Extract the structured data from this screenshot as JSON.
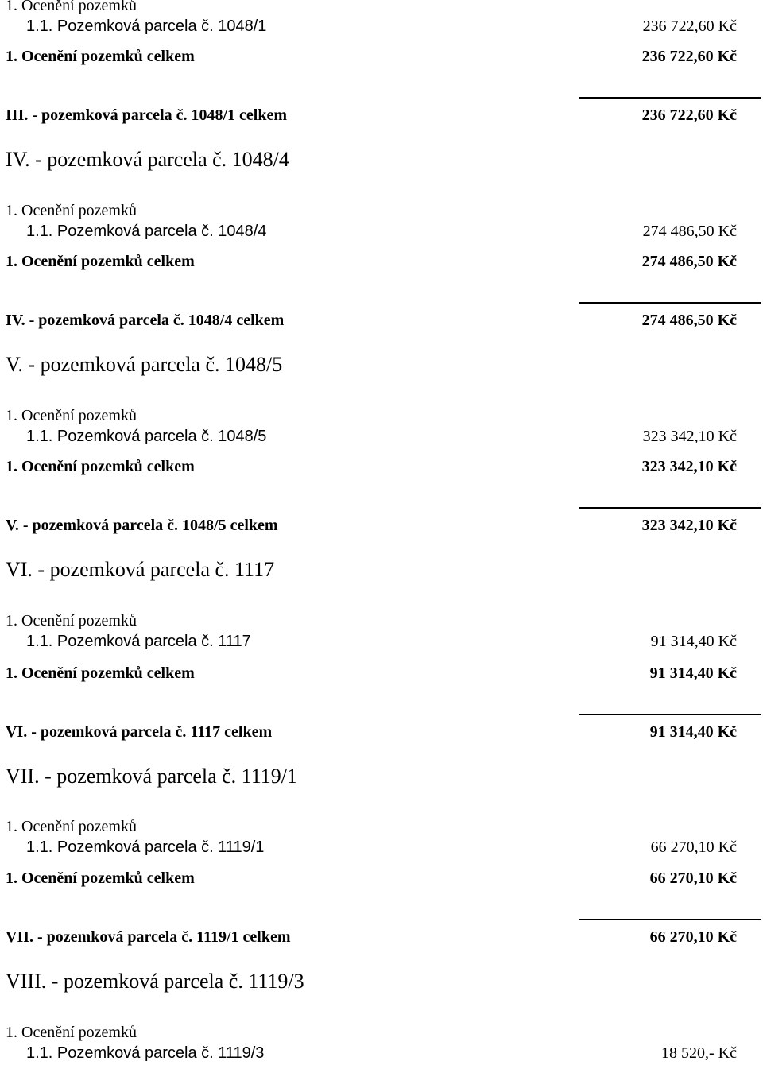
{
  "rows": [
    {
      "type": "subhead",
      "label": "1. Ocenění pozemků"
    },
    {
      "type": "item",
      "label": "1.1. Pozemková parcela č. 1048/1",
      "value": "236 722,60 Kč"
    },
    {
      "type": "subtotal",
      "label": "1. Ocenění pozemků celkem",
      "value": "236 722,60 Kč"
    },
    {
      "type": "rule"
    },
    {
      "type": "total",
      "label": "III. - pozemková parcela č. 1048/1 celkem",
      "value": "236 722,60 Kč"
    },
    {
      "type": "section",
      "label": "IV. - pozemková parcela č. 1048/4"
    },
    {
      "type": "subhead",
      "label": "1. Ocenění pozemků"
    },
    {
      "type": "item",
      "label": "1.1. Pozemková parcela č. 1048/4",
      "value": "274 486,50 Kč"
    },
    {
      "type": "subtotal",
      "label": "1. Ocenění pozemků celkem",
      "value": "274 486,50 Kč"
    },
    {
      "type": "rule"
    },
    {
      "type": "total",
      "label": "IV. - pozemková parcela č. 1048/4 celkem",
      "value": "274 486,50 Kč"
    },
    {
      "type": "section",
      "label": "V. - pozemková parcela č. 1048/5"
    },
    {
      "type": "subhead",
      "label": "1. Ocenění pozemků"
    },
    {
      "type": "item",
      "label": "1.1. Pozemková parcela č. 1048/5",
      "value": "323 342,10 Kč"
    },
    {
      "type": "subtotal",
      "label": "1. Ocenění pozemků celkem",
      "value": "323 342,10 Kč"
    },
    {
      "type": "rule"
    },
    {
      "type": "total",
      "label": "V. - pozemková parcela č. 1048/5 celkem",
      "value": "323 342,10 Kč"
    },
    {
      "type": "section",
      "label": "VI. - pozemková parcela č. 1117"
    },
    {
      "type": "subhead",
      "label": "1. Ocenění pozemků"
    },
    {
      "type": "item",
      "label": "1.1. Pozemková parcela č. 1117",
      "value": "91 314,40 Kč"
    },
    {
      "type": "subtotal",
      "label": "1. Ocenění pozemků celkem",
      "value": "91 314,40 Kč"
    },
    {
      "type": "rule"
    },
    {
      "type": "total",
      "label": "VI. - pozemková parcela č. 1117 celkem",
      "value": "91 314,40 Kč"
    },
    {
      "type": "section",
      "label": "VII. - pozemková parcela č. 1119/1"
    },
    {
      "type": "subhead",
      "label": "1. Ocenění pozemků"
    },
    {
      "type": "item",
      "label": "1.1. Pozemková parcela č. 1119/1",
      "value": "66 270,10 Kč"
    },
    {
      "type": "subtotal",
      "label": "1. Ocenění pozemků celkem",
      "value": "66 270,10 Kč"
    },
    {
      "type": "rule"
    },
    {
      "type": "total",
      "label": "VII. - pozemková parcela č. 1119/1 celkem",
      "value": "66 270,10 Kč"
    },
    {
      "type": "section",
      "label": "VIII. - pozemková parcela č. 1119/3"
    },
    {
      "type": "subhead",
      "label": "1. Ocenění pozemků"
    },
    {
      "type": "item",
      "label": "1.1. Pozemková parcela č. 1119/3",
      "value": "18 520,- Kč"
    }
  ]
}
